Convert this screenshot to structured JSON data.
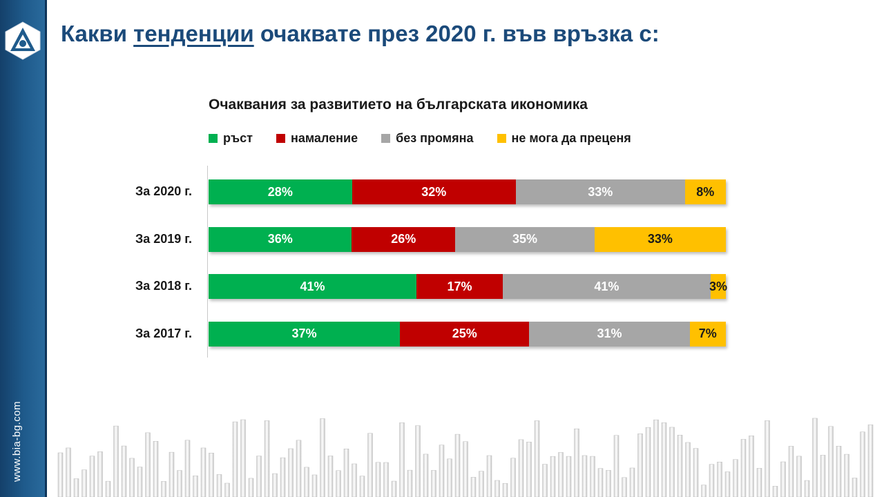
{
  "page": {
    "title_pre": "Какви ",
    "title_emph": "тенденции",
    "title_post": " очаквате през 2020 г. във връзка с:",
    "site_url": "www.bia-bg.com"
  },
  "colors": {
    "sidebar": "#1f5b8c",
    "title": "#1b4a7a",
    "growth": "#00b050",
    "decrease": "#c00000",
    "no_change": "#a6a6a6",
    "cannot_judge": "#ffc000"
  },
  "chart_data": {
    "type": "bar",
    "orientation": "horizontal",
    "stacked": true,
    "title": "Очаквания за развитието на българската икономика",
    "legend_position": "top",
    "categories": [
      "За 2020 г.",
      "За 2019 г.",
      "За 2018 г.",
      "За 2017 г."
    ],
    "series": [
      {
        "name": "ръст",
        "color": "#00b050",
        "label_color": "#ffffff",
        "values": [
          28,
          36,
          41,
          37
        ],
        "labels": [
          "28%",
          "36%",
          "41%",
          "37%"
        ]
      },
      {
        "name": "намаление",
        "color": "#c00000",
        "label_color": "#ffffff",
        "values": [
          32,
          26,
          17,
          25
        ],
        "labels": [
          "32%",
          "26%",
          "17%",
          "25%"
        ]
      },
      {
        "name": "без промяна",
        "color": "#a6a6a6",
        "label_color": "#ffffff",
        "values": [
          33,
          35,
          41,
          31
        ],
        "labels": [
          "33%",
          "35%",
          "41%",
          "31%"
        ]
      },
      {
        "name": "не мога да преценя",
        "color": "#ffc000",
        "label_color": "#1a1a1a",
        "values": [
          8,
          33,
          3,
          7
        ],
        "labels": [
          "8%",
          "33%",
          "3%",
          "7%"
        ]
      }
    ]
  }
}
